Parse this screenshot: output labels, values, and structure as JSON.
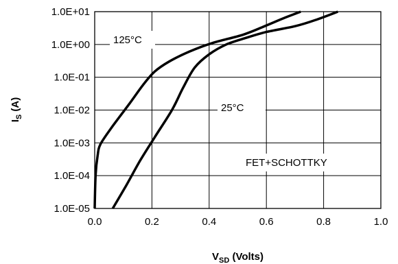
{
  "chart_data": {
    "type": "line",
    "xlabel": {
      "main": "V",
      "sub": "SD",
      "suffix": " (Volts)"
    },
    "ylabel": {
      "main": "I",
      "sub": "S",
      "suffix": " (A)"
    },
    "xlim": [
      0,
      1.0
    ],
    "ylim_log10": [
      -5,
      1
    ],
    "y_scale": "log",
    "grid": true,
    "x_tick_labels": [
      "0.0",
      "0.2",
      "0.4",
      "0.6",
      "0.8",
      "1.0"
    ],
    "y_tick_labels": [
      "1.0E-05",
      "1.0E-04",
      "1.0E-03",
      "1.0E-02",
      "1.0E-01",
      "1.0E+00",
      "1.0E+01"
    ],
    "series": [
      {
        "name": "125°C",
        "points": [
          [
            0.0,
            1e-05
          ],
          [
            0.003,
            0.0001
          ],
          [
            0.01,
            0.0004
          ],
          [
            0.02,
            0.0009
          ],
          [
            0.06,
            0.003
          ],
          [
            0.12,
            0.015
          ],
          [
            0.17,
            0.06
          ],
          [
            0.21,
            0.15
          ],
          [
            0.26,
            0.3
          ],
          [
            0.33,
            0.6
          ],
          [
            0.41,
            1.1
          ],
          [
            0.52,
            2.0
          ],
          [
            0.6,
            3.8
          ],
          [
            0.66,
            6.3
          ],
          [
            0.72,
            10.0
          ]
        ]
      },
      {
        "name": "25°C",
        "points": [
          [
            0.063,
            1e-05
          ],
          [
            0.11,
            5e-05
          ],
          [
            0.16,
            0.0003
          ],
          [
            0.21,
            0.0015
          ],
          [
            0.27,
            0.01
          ],
          [
            0.31,
            0.05
          ],
          [
            0.35,
            0.2
          ],
          [
            0.4,
            0.5
          ],
          [
            0.46,
            1.0
          ],
          [
            0.53,
            1.6
          ],
          [
            0.6,
            2.4
          ],
          [
            0.7,
            3.6
          ],
          [
            0.77,
            5.5
          ],
          [
            0.85,
            10.0
          ]
        ]
      }
    ],
    "annotations": [
      "125°C",
      "25°C",
      "FET+SCHOTTKY"
    ]
  }
}
